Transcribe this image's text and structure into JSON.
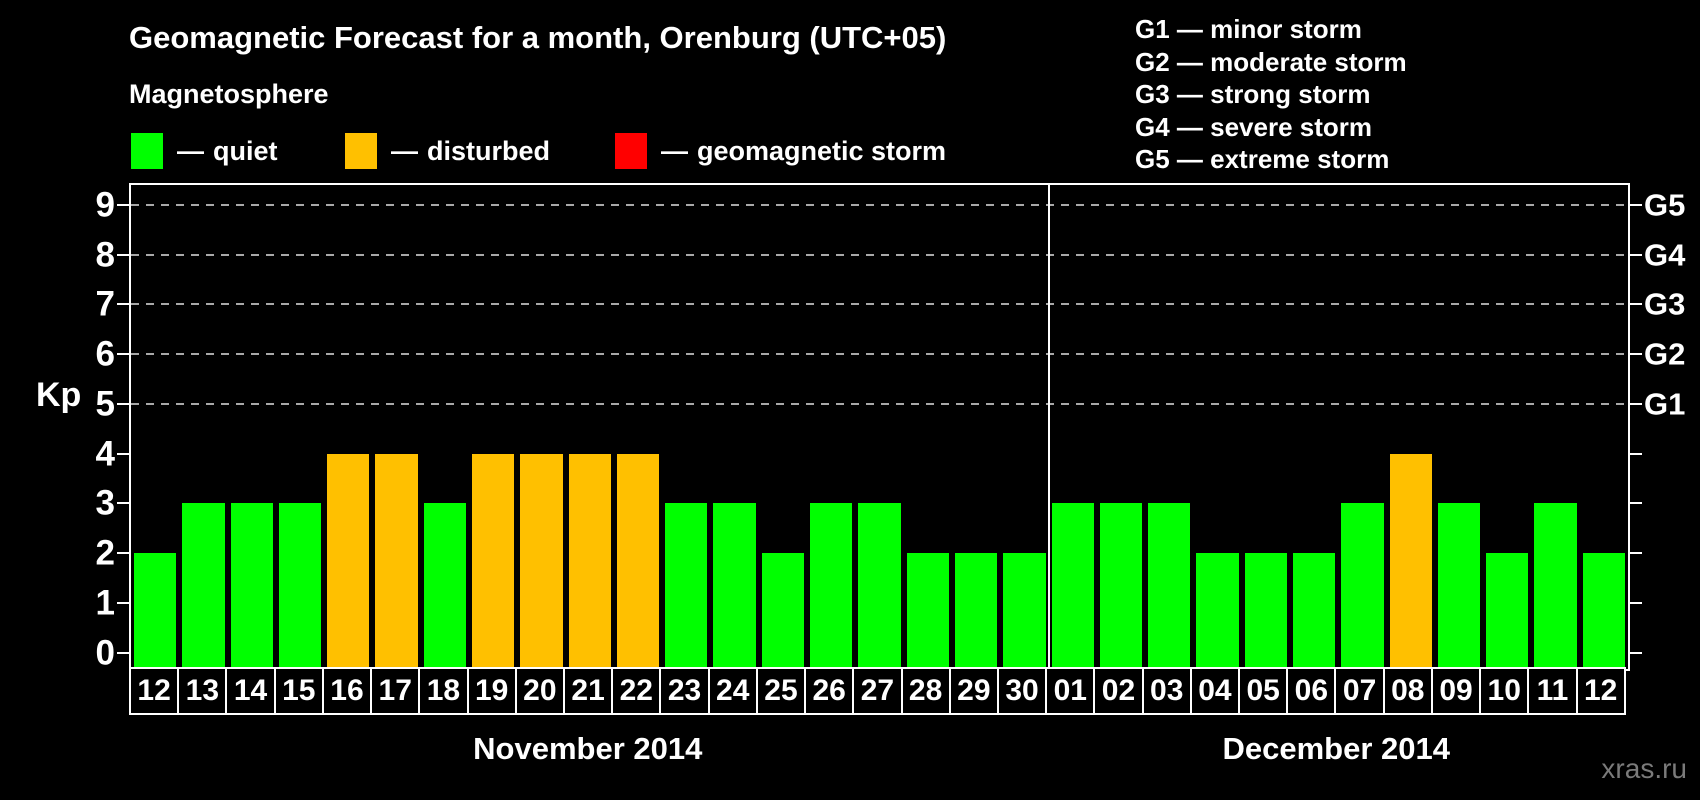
{
  "header": {
    "title": "Geomagnetic Forecast for a month, Orenburg (UTC+05)"
  },
  "legend": {
    "title": "Magnetosphere",
    "dash": "—",
    "items": [
      {
        "name": "quiet",
        "label": "quiet",
        "color": "#00ff00"
      },
      {
        "name": "disturbed",
        "label": "disturbed",
        "color": "#ffc000"
      },
      {
        "name": "geomagnetic-storm",
        "label": "geomagnetic storm",
        "color": "#ff0000"
      }
    ]
  },
  "storm_scale_legend": [
    "G1 — minor storm",
    "G2 — moderate storm",
    "G3 — strong storm",
    "G4 — severe storm",
    "G5 — extreme storm"
  ],
  "axis": {
    "ylabel": "Kp"
  },
  "watermark": "xras.ru",
  "chart_data": {
    "type": "bar",
    "title": "Geomagnetic Forecast for a month, Orenburg (UTC+05)",
    "ylabel": "Kp",
    "ylim": [
      -0.33,
      9.4
    ],
    "y_ticks": [
      0,
      1,
      2,
      3,
      4,
      5,
      6,
      7,
      8,
      9
    ],
    "gridlines_at": [
      5,
      6,
      7,
      8,
      9
    ],
    "grid_style": "dashed",
    "legend_position": "top",
    "right_axis_labels": [
      {
        "label": "G1",
        "value": 5
      },
      {
        "label": "G2",
        "value": 6
      },
      {
        "label": "G3",
        "value": 7
      },
      {
        "label": "G4",
        "value": 8
      },
      {
        "label": "G5",
        "value": 9
      }
    ],
    "status_colors": {
      "quiet": "#00ff00",
      "disturbed": "#ffc000",
      "storm": "#ff0000"
    },
    "months": [
      {
        "label": "November 2014",
        "days": [
          {
            "day": "12",
            "kp": 2,
            "status": "quiet"
          },
          {
            "day": "13",
            "kp": 3,
            "status": "quiet"
          },
          {
            "day": "14",
            "kp": 3,
            "status": "quiet"
          },
          {
            "day": "15",
            "kp": 3,
            "status": "quiet"
          },
          {
            "day": "16",
            "kp": 4,
            "status": "disturbed"
          },
          {
            "day": "17",
            "kp": 4,
            "status": "disturbed"
          },
          {
            "day": "18",
            "kp": 3,
            "status": "quiet"
          },
          {
            "day": "19",
            "kp": 4,
            "status": "disturbed"
          },
          {
            "day": "20",
            "kp": 4,
            "status": "disturbed"
          },
          {
            "day": "21",
            "kp": 4,
            "status": "disturbed"
          },
          {
            "day": "22",
            "kp": 4,
            "status": "disturbed"
          },
          {
            "day": "23",
            "kp": 3,
            "status": "quiet"
          },
          {
            "day": "24",
            "kp": 3,
            "status": "quiet"
          },
          {
            "day": "25",
            "kp": 2,
            "status": "quiet"
          },
          {
            "day": "26",
            "kp": 3,
            "status": "quiet"
          },
          {
            "day": "27",
            "kp": 3,
            "status": "quiet"
          },
          {
            "day": "28",
            "kp": 2,
            "status": "quiet"
          },
          {
            "day": "29",
            "kp": 2,
            "status": "quiet"
          },
          {
            "day": "30",
            "kp": 2,
            "status": "quiet"
          }
        ]
      },
      {
        "label": "December 2014",
        "days": [
          {
            "day": "01",
            "kp": 3,
            "status": "quiet"
          },
          {
            "day": "02",
            "kp": 3,
            "status": "quiet"
          },
          {
            "day": "03",
            "kp": 3,
            "status": "quiet"
          },
          {
            "day": "04",
            "kp": 2,
            "status": "quiet"
          },
          {
            "day": "05",
            "kp": 2,
            "status": "quiet"
          },
          {
            "day": "06",
            "kp": 2,
            "status": "quiet"
          },
          {
            "day": "07",
            "kp": 3,
            "status": "quiet"
          },
          {
            "day": "08",
            "kp": 4,
            "status": "disturbed"
          },
          {
            "day": "09",
            "kp": 3,
            "status": "quiet"
          },
          {
            "day": "10",
            "kp": 2,
            "status": "quiet"
          },
          {
            "day": "11",
            "kp": 3,
            "status": "quiet"
          },
          {
            "day": "12",
            "kp": 2,
            "status": "quiet"
          }
        ]
      }
    ]
  }
}
